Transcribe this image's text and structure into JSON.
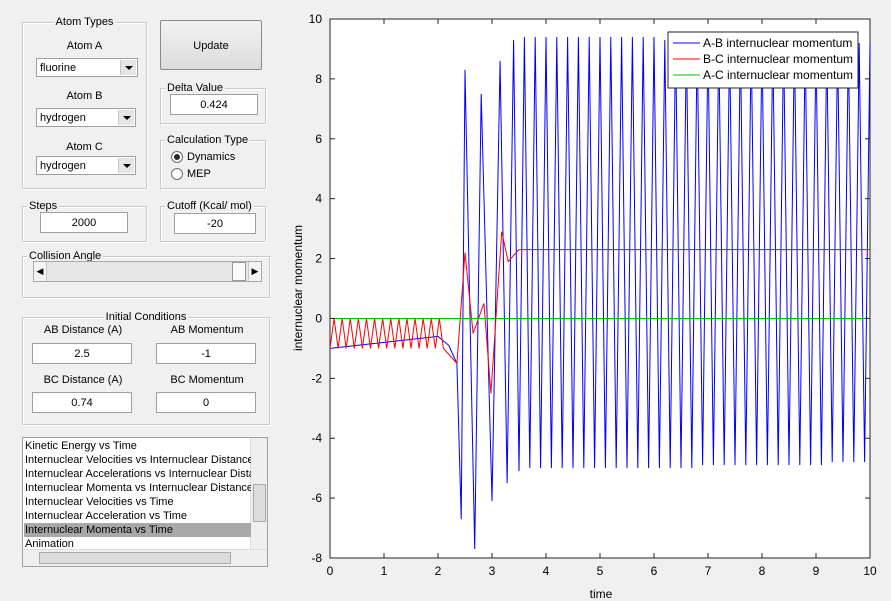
{
  "ui": {
    "atom_types": {
      "title": "Atom Types",
      "atom_a_label": "Atom A",
      "atom_a": "fluorine",
      "atom_b_label": "Atom B",
      "atom_b": "hydrogen",
      "atom_c_label": "Atom C",
      "atom_c": "hydrogen"
    },
    "update_button": "Update",
    "delta_value": {
      "title": "Delta Value",
      "value": 0.424
    },
    "calculation_type": {
      "title": "Calculation Type",
      "options": [
        "Dynamics",
        "MEP"
      ],
      "selected": 0
    },
    "steps": {
      "title": "Steps",
      "value": 2000
    },
    "cutoff": {
      "title": "Cutoff (Kcal/ mol)",
      "value": -20
    },
    "collision_angle": {
      "title": "Collision Angle"
    },
    "initial_conditions": {
      "title": "Initial Conditions",
      "ab_distance_label": "AB Distance (A)",
      "ab_distance": 2.5,
      "ab_momentum_label": "AB Momentum",
      "ab_momentum": -1,
      "bc_distance_label": "BC Distance (A)",
      "bc_distance": 0.74,
      "bc_momentum_label": "BC Momentum",
      "bc_momentum": 0
    },
    "plot_list": {
      "items": [
        "Kinetic Energy vs Time",
        "Internuclear Velocities vs Internuclear Distance",
        "Internuclear Accelerations vs Internuclear Dista",
        "Internuclear Momenta vs Internuclear Distance",
        "Internuclear Velocities vs Time",
        "Internuclear Acceleration vs Time",
        "Internuclear Momenta vs Time",
        "Animation"
      ],
      "selected": 6
    }
  },
  "chart_data": {
    "type": "line",
    "xlabel": "time",
    "ylabel": "internuclear momentum",
    "xlim": [
      0,
      10
    ],
    "ylim": [
      -8,
      10
    ],
    "xticks": [
      0,
      1,
      2,
      3,
      4,
      5,
      6,
      7,
      8,
      9,
      10
    ],
    "yticks": [
      -8,
      -6,
      -4,
      -2,
      0,
      2,
      4,
      6,
      8,
      10
    ],
    "grid": false,
    "legend": "northeast",
    "series": [
      {
        "name": "A-B internuclear momentum",
        "color": "#0000ff",
        "x": [
          0,
          0.5,
          1.0,
          1.5,
          2.0,
          2.2,
          2.35,
          2.43,
          2.5,
          2.68,
          2.8,
          3.0,
          3.15,
          3.28,
          3.4,
          3.5,
          3.6,
          3.7,
          3.8,
          3.9,
          4.0,
          4.1,
          4.2,
          4.3,
          4.4,
          4.5,
          4.6,
          4.7,
          4.8,
          4.9,
          5.0,
          5.1,
          5.2,
          5.3,
          5.4,
          5.5,
          5.6,
          5.7,
          5.8,
          5.9,
          6.0,
          6.1,
          6.2,
          6.3,
          6.4,
          6.5,
          6.6,
          6.7,
          6.8,
          6.9,
          7.0,
          7.1,
          7.2,
          7.3,
          7.4,
          7.5,
          7.6,
          7.7,
          7.8,
          7.9,
          8.0,
          8.1,
          8.2,
          8.3,
          8.4,
          8.5,
          8.6,
          8.7,
          8.8,
          8.9,
          9.0,
          9.1,
          9.2,
          9.3,
          9.4,
          9.5,
          9.6,
          9.7,
          9.8,
          9.9,
          10.0
        ],
        "values": [
          -1,
          -0.9,
          -0.8,
          -0.7,
          -0.6,
          -0.9,
          -1.5,
          -6.7,
          8.3,
          -7.7,
          7.5,
          -6.1,
          8.6,
          -5.5,
          9.3,
          -5.1,
          9.4,
          -5.0,
          9.4,
          -5.0,
          9.4,
          -5.0,
          9.4,
          -5.0,
          9.4,
          -5.0,
          9.4,
          -5.0,
          9.4,
          -5.0,
          9.4,
          -5.0,
          9.4,
          -5.0,
          9.4,
          -5.0,
          9.4,
          -5.0,
          9.4,
          -5.0,
          9.4,
          -5.0,
          9.3,
          -5.0,
          9.3,
          -5.0,
          9.3,
          -5.0,
          9.3,
          -4.9,
          9.3,
          -4.9,
          9.3,
          -4.9,
          9.3,
          -4.9,
          9.3,
          -4.9,
          9.3,
          -4.9,
          9.3,
          -4.9,
          9.3,
          -4.9,
          9.3,
          -4.9,
          9.3,
          -4.9,
          9.2,
          -4.9,
          9.2,
          -4.9,
          9.2,
          -4.8,
          9.2,
          -4.8,
          9.2,
          -4.8,
          9.2,
          -4.8,
          9.2
        ]
      },
      {
        "name": "B-C internuclear momentum",
        "color": "#ff0000",
        "x": [
          0,
          0.075,
          0.15,
          0.225,
          0.3,
          0.375,
          0.45,
          0.525,
          0.6,
          0.675,
          0.75,
          0.825,
          0.9,
          0.975,
          1.05,
          1.125,
          1.2,
          1.275,
          1.35,
          1.425,
          1.5,
          1.575,
          1.65,
          1.725,
          1.8,
          1.875,
          1.95,
          2.025,
          2.1,
          2.35,
          2.5,
          2.65,
          2.85,
          2.98,
          3.18,
          3.3,
          3.5,
          10
        ],
        "values": [
          -1,
          0,
          -1,
          0,
          -1,
          0,
          -1,
          0,
          -1,
          0,
          -1,
          0,
          -1,
          0,
          -1,
          0,
          -1,
          0,
          -1,
          0,
          -1,
          0,
          -1,
          0,
          -1,
          0,
          -1,
          0,
          -1,
          -1.5,
          2.2,
          -0.5,
          0.5,
          -2.5,
          2.9,
          1.9,
          2.3,
          2.3
        ]
      },
      {
        "name": "A-C internuclear momentum",
        "color": "#00c000",
        "x": [
          0,
          10
        ],
        "values": [
          0,
          0
        ]
      }
    ]
  }
}
